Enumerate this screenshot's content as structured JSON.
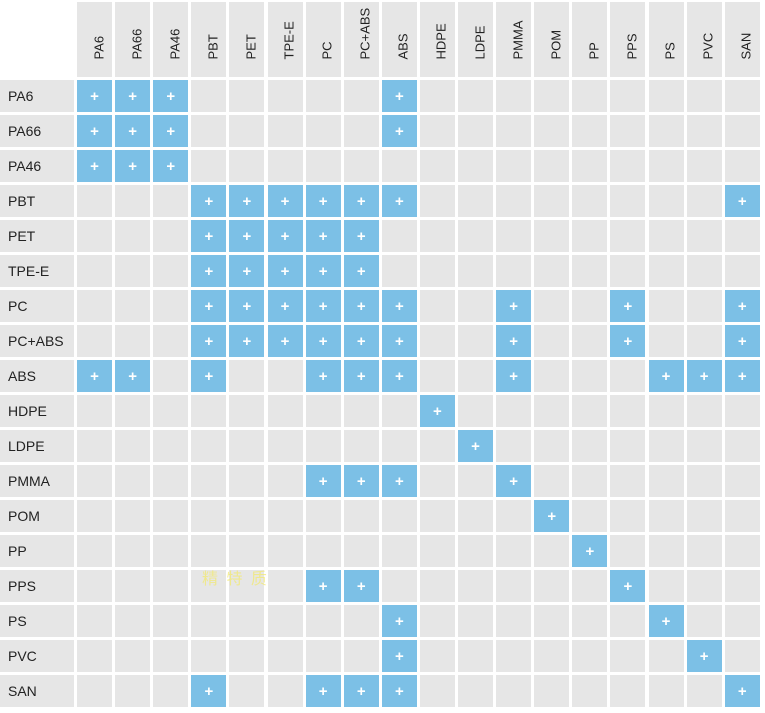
{
  "materials": [
    "PA6",
    "PA66",
    "PA46",
    "PBT",
    "PET",
    "TPE-E",
    "PC",
    "PC+ABS",
    "ABS",
    "HDPE",
    "LDPE",
    "PMMA",
    "POM",
    "PP",
    "PPS",
    "PS",
    "PVC",
    "SAN"
  ],
  "mark_symbol": "+",
  "colors": {
    "compatible": "#7cc0e6",
    "empty": "#e6e6e6",
    "header": "#e6e6e6"
  },
  "compatibility": [
    {
      "row": "PA6",
      "compatible": [
        "PA6",
        "PA66",
        "PA46",
        "ABS"
      ]
    },
    {
      "row": "PA66",
      "compatible": [
        "PA6",
        "PA66",
        "PA46",
        "ABS"
      ]
    },
    {
      "row": "PA46",
      "compatible": [
        "PA6",
        "PA66",
        "PA46"
      ]
    },
    {
      "row": "PBT",
      "compatible": [
        "PBT",
        "PET",
        "TPE-E",
        "PC",
        "PC+ABS",
        "ABS",
        "SAN"
      ]
    },
    {
      "row": "PET",
      "compatible": [
        "PBT",
        "PET",
        "TPE-E",
        "PC",
        "PC+ABS"
      ]
    },
    {
      "row": "TPE-E",
      "compatible": [
        "PBT",
        "PET",
        "TPE-E",
        "PC",
        "PC+ABS"
      ]
    },
    {
      "row": "PC",
      "compatible": [
        "PBT",
        "PET",
        "TPE-E",
        "PC",
        "PC+ABS",
        "ABS",
        "PMMA",
        "PPS",
        "SAN"
      ]
    },
    {
      "row": "PC+ABS",
      "compatible": [
        "PBT",
        "PET",
        "TPE-E",
        "PC",
        "PC+ABS",
        "ABS",
        "PMMA",
        "PPS",
        "SAN"
      ]
    },
    {
      "row": "ABS",
      "compatible": [
        "PA6",
        "PA66",
        "PBT",
        "PC",
        "PC+ABS",
        "ABS",
        "PMMA",
        "PS",
        "PVC",
        "SAN"
      ]
    },
    {
      "row": "HDPE",
      "compatible": [
        "HDPE"
      ]
    },
    {
      "row": "LDPE",
      "compatible": [
        "LDPE"
      ]
    },
    {
      "row": "PMMA",
      "compatible": [
        "PC",
        "PC+ABS",
        "ABS",
        "PMMA"
      ]
    },
    {
      "row": "POM",
      "compatible": [
        "POM"
      ]
    },
    {
      "row": "PP",
      "compatible": [
        "PP"
      ]
    },
    {
      "row": "PPS",
      "compatible": [
        "PC",
        "PC+ABS",
        "PPS"
      ]
    },
    {
      "row": "PS",
      "compatible": [
        "ABS",
        "PS"
      ]
    },
    {
      "row": "PVC",
      "compatible": [
        "ABS",
        "PVC"
      ]
    },
    {
      "row": "SAN",
      "compatible": [
        "PBT",
        "PC",
        "PC+ABS",
        "ABS",
        "SAN"
      ]
    }
  ],
  "watermark": "精 特 质"
}
